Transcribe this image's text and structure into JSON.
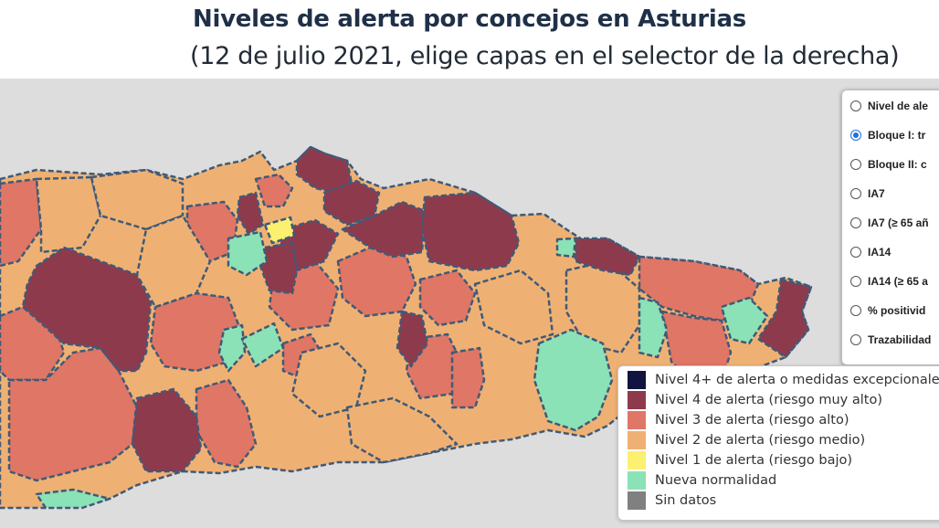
{
  "title": "Niveles de alerta por concejos en Asturias",
  "subtitle": "(12 de julio 2021, elige capas en el selector de la derecha)",
  "layers": [
    {
      "label": "Nivel de ale",
      "selected": false
    },
    {
      "label": "Bloque I: tr",
      "selected": true
    },
    {
      "label": "Bloque II: c",
      "selected": false
    },
    {
      "label": "IA7",
      "selected": false
    },
    {
      "label": "IA7 (≥ 65 añ",
      "selected": false
    },
    {
      "label": "IA14",
      "selected": false
    },
    {
      "label": "IA14 (≥ 65 a",
      "selected": false
    },
    {
      "label": "% positivid",
      "selected": false
    },
    {
      "label": "Trazabilidad",
      "selected": false
    }
  ],
  "legend": [
    {
      "label": "Nivel 4+ de alerta o medidas excepcionales",
      "color": "#10143e"
    },
    {
      "label": "Nivel 4 de alerta (riesgo muy alto)",
      "color": "#8e3a4d"
    },
    {
      "label": "Nivel 3 de alerta (riesgo alto)",
      "color": "#e07665"
    },
    {
      "label": "Nivel 2 de alerta (riesgo medio)",
      "color": "#efb173"
    },
    {
      "label": "Nivel 1 de alerta (riesgo bajo)",
      "color": "#fbf06f"
    },
    {
      "label": "Nueva normalidad",
      "color": "#8be2b6"
    },
    {
      "label": "Sin datos",
      "color": "#808080"
    }
  ],
  "colors": {
    "map_background": "#dddddd",
    "borders": "#3f5a78",
    "title": "#1f3048"
  }
}
